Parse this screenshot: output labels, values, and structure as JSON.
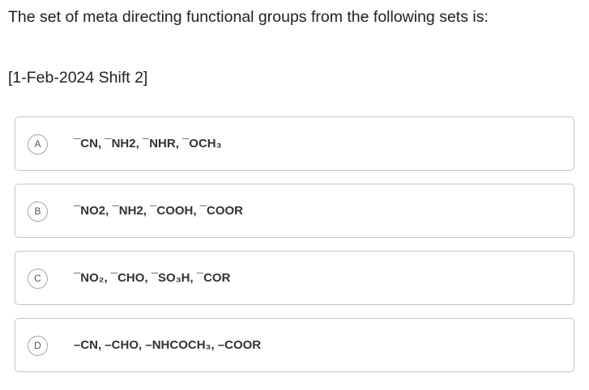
{
  "question": {
    "text": "The set of meta directing functional groups from the following sets is:",
    "source": "[1-Feb-2024 Shift 2]"
  },
  "options": [
    {
      "letter": "A",
      "text": "¯CN, ¯NH2, ¯NHR, ¯OCH₃"
    },
    {
      "letter": "B",
      "text": "¯NO2, ¯NH2, ¯COOH, ¯COOR"
    },
    {
      "letter": "C",
      "text": "¯NO₂, ¯CHO, ¯SO₃H, ¯COR"
    },
    {
      "letter": "D",
      "text": "–CN, –CHO, –NHCOCH₃, –COOR"
    }
  ]
}
